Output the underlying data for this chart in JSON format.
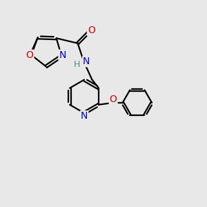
{
  "bg_color": "#e8e8e8",
  "bond_color": "#000000",
  "bond_width": 1.6,
  "atom_colors": {
    "N": "#0000cc",
    "O": "#cc0000",
    "C": "#000000",
    "H": "#4a9080"
  },
  "font_size": 10,
  "figsize": [
    3.0,
    3.0
  ],
  "dpi": 100
}
